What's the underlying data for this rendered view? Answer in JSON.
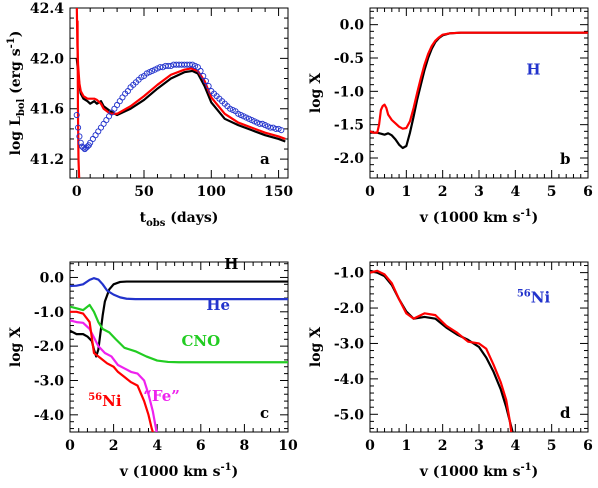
{
  "chart_data": [
    {
      "panel": "a",
      "type": "line",
      "xlabel": "t",
      "xlabel_sub": "obs",
      "xlabel_rest": " (days)",
      "ylabel": "log L",
      "ylabel_sub": "bol",
      "ylabel_rest": " (erg s",
      "ylabel_sup": "-1",
      "ylabel_end": ")",
      "xlim": [
        -5,
        157
      ],
      "ylim": [
        41.05,
        42.4
      ],
      "xticks": [
        0,
        50,
        100,
        150
      ],
      "xtick_labels": [
        "0",
        "50",
        "100",
        "150"
      ],
      "yticks": [
        41.2,
        41.6,
        42.0,
        42.4
      ],
      "ytick_labels": [
        "41.2",
        "41.6",
        "42.0",
        "42.4"
      ],
      "panel_label": "a",
      "series": [
        {
          "color": "#000000",
          "style": "line",
          "x": [
            0,
            1,
            2,
            3,
            5,
            8,
            10,
            13,
            15,
            18,
            20,
            25,
            30,
            40,
            50,
            60,
            70,
            80,
            86,
            90,
            95,
            100,
            110,
            120,
            130,
            140,
            150,
            155
          ],
          "y": [
            42.0,
            41.9,
            41.78,
            41.72,
            41.68,
            41.66,
            41.64,
            41.66,
            41.64,
            41.66,
            41.62,
            41.58,
            41.55,
            41.6,
            41.67,
            41.76,
            41.84,
            41.89,
            41.9,
            41.88,
            41.78,
            41.65,
            41.52,
            41.47,
            41.43,
            41.39,
            41.36,
            41.34
          ]
        },
        {
          "color": "#ff0000",
          "style": "line",
          "x": [
            0,
            0.5,
            1,
            2,
            3,
            5,
            8,
            10,
            13,
            15,
            18,
            20,
            25,
            30,
            40,
            50,
            60,
            70,
            80,
            85,
            90,
            95,
            100,
            110,
            120,
            130,
            140,
            150,
            155
          ],
          "y": [
            42.45,
            42.1,
            41.95,
            41.8,
            41.74,
            41.7,
            41.68,
            41.68,
            41.68,
            41.67,
            41.64,
            41.6,
            41.56,
            41.56,
            41.62,
            41.7,
            41.79,
            41.87,
            41.91,
            41.92,
            41.9,
            41.82,
            41.69,
            41.56,
            41.49,
            41.45,
            41.41,
            41.38,
            41.36
          ]
        },
        {
          "color": "#ff0000",
          "style": "line",
          "x": [
            0.6,
            0.9,
            1.3,
            1.8
          ],
          "y": [
            42.3,
            41.6,
            41.2,
            41.05
          ]
        },
        {
          "color": "#2233cc",
          "style": "markers",
          "x": [
            0,
            1,
            2,
            3,
            4,
            5,
            6,
            7,
            8,
            9,
            10,
            12,
            14,
            16,
            18,
            20,
            22,
            24,
            26,
            28,
            30,
            32,
            34,
            36,
            38,
            40,
            42,
            44,
            46,
            48,
            50,
            52,
            54,
            56,
            58,
            60,
            62,
            64,
            66,
            68,
            70,
            72,
            74,
            76,
            78,
            80,
            82,
            84,
            86,
            88,
            90,
            92,
            94,
            96,
            98,
            100,
            102,
            104,
            106,
            108,
            110,
            112,
            114,
            116,
            118,
            120,
            122,
            124,
            126,
            128,
            130,
            132,
            134,
            136,
            138,
            140,
            142,
            144,
            146,
            148,
            150,
            152
          ],
          "y": [
            41.55,
            41.45,
            41.38,
            41.33,
            41.3,
            41.29,
            41.28,
            41.29,
            41.3,
            41.31,
            41.33,
            41.36,
            41.39,
            41.42,
            41.45,
            41.48,
            41.51,
            41.54,
            41.57,
            41.6,
            41.63,
            41.66,
            41.69,
            41.72,
            41.74,
            41.77,
            41.79,
            41.81,
            41.83,
            41.85,
            41.86,
            41.88,
            41.89,
            41.9,
            41.91,
            41.92,
            41.93,
            41.93,
            41.94,
            41.94,
            41.94,
            41.95,
            41.95,
            41.95,
            41.95,
            41.95,
            41.95,
            41.95,
            41.95,
            41.94,
            41.93,
            41.9,
            41.86,
            41.82,
            41.78,
            41.74,
            41.72,
            41.7,
            41.68,
            41.66,
            41.64,
            41.62,
            41.6,
            41.59,
            41.58,
            41.56,
            41.55,
            41.54,
            41.53,
            41.52,
            41.51,
            41.5,
            41.49,
            41.48,
            41.48,
            41.47,
            41.46,
            41.45,
            41.45,
            41.44,
            41.44,
            41.43
          ]
        }
      ]
    },
    {
      "panel": "b",
      "type": "line",
      "xlabel": "v (1000 km s",
      "xlabel_sup": "-1",
      "xlabel_end": ")",
      "ylabel": "log X",
      "xlim": [
        0,
        6
      ],
      "ylim": [
        -2.3,
        0.25
      ],
      "xticks": [
        0,
        1,
        2,
        3,
        4,
        5,
        6
      ],
      "xtick_labels": [
        "0",
        "1",
        "2",
        "3",
        "4",
        "5",
        "6"
      ],
      "yticks": [
        -2.0,
        -1.5,
        -1.0,
        -0.5,
        0.0
      ],
      "ytick_labels": [
        "-2.0",
        "-1.5",
        "-1.0",
        "-0.5",
        "0.0"
      ],
      "panel_label": "b",
      "annotation": {
        "text": "H",
        "color": "#2233cc",
        "x": 4.5,
        "y": -0.75
      },
      "series": [
        {
          "color": "#000000",
          "style": "line",
          "x": [
            0,
            0.2,
            0.4,
            0.5,
            0.6,
            0.7,
            0.8,
            0.9,
            1.0,
            1.1,
            1.2,
            1.3,
            1.4,
            1.5,
            1.6,
            1.7,
            1.8,
            1.9,
            2.0,
            2.2,
            2.5,
            3,
            4,
            5,
            6
          ],
          "y": [
            -1.62,
            -1.62,
            -1.65,
            -1.63,
            -1.66,
            -1.72,
            -1.8,
            -1.85,
            -1.82,
            -1.62,
            -1.38,
            -1.12,
            -0.9,
            -0.68,
            -0.5,
            -0.36,
            -0.26,
            -0.2,
            -0.16,
            -0.13,
            -0.12,
            -0.12,
            -0.12,
            -0.12,
            -0.12
          ]
        },
        {
          "color": "#ff0000",
          "style": "line",
          "x": [
            0,
            0.1,
            0.2,
            0.25,
            0.3,
            0.35,
            0.4,
            0.45,
            0.5,
            0.6,
            0.7,
            0.8,
            0.9,
            1.0,
            1.1,
            1.2,
            1.3,
            1.4,
            1.5,
            1.6,
            1.7,
            1.8,
            1.9,
            2.0,
            2.2,
            2.5,
            3,
            4,
            5,
            6
          ],
          "y": [
            -1.6,
            -1.62,
            -1.62,
            -1.5,
            -1.28,
            -1.22,
            -1.2,
            -1.25,
            -1.35,
            -1.43,
            -1.48,
            -1.53,
            -1.56,
            -1.55,
            -1.45,
            -1.25,
            -1.02,
            -0.8,
            -0.6,
            -0.44,
            -0.32,
            -0.24,
            -0.19,
            -0.15,
            -0.13,
            -0.12,
            -0.12,
            -0.12,
            -0.12,
            -0.12
          ]
        }
      ]
    },
    {
      "panel": "c",
      "type": "line",
      "xlabel": "v (1000 km s",
      "xlabel_sup": "-1",
      "xlabel_end": ")",
      "ylabel": "log X",
      "xlim": [
        0,
        10
      ],
      "ylim": [
        -4.5,
        0.45
      ],
      "xticks": [
        0,
        2,
        4,
        6,
        8,
        10
      ],
      "xtick_labels": [
        "0",
        "2",
        "4",
        "6",
        "8",
        "10"
      ],
      "yticks": [
        -4.0,
        -3.0,
        -2.0,
        -1.0,
        0.0
      ],
      "ytick_labels": [
        "-4.0",
        "-3.0",
        "-2.0",
        "-1.0",
        "0.0"
      ],
      "panel_label": "c",
      "annotations": [
        {
          "text": "H",
          "color": "#000000",
          "x": 7.4,
          "y": 0.25
        },
        {
          "text": "He",
          "color": "#2233cc",
          "x": 6.8,
          "y": -0.95
        },
        {
          "text": "CNO",
          "color": "#22cc22",
          "x": 6.0,
          "y": -2.0
        },
        {
          "text": "“Fe”",
          "color": "#ee22ee",
          "x": 4.2,
          "y": -3.6
        },
        {
          "text": "Ni",
          "sup": "56",
          "color": "#ff0000",
          "x": 1.6,
          "y": -3.75
        }
      ],
      "series": [
        {
          "color": "#000000",
          "style": "line",
          "x": [
            0,
            0.3,
            0.6,
            0.8,
            1.0,
            1.1,
            1.2,
            1.3,
            1.4,
            1.5,
            1.6,
            1.8,
            2.0,
            2.3,
            2.6,
            3,
            4,
            6,
            8,
            10
          ],
          "y": [
            -1.55,
            -1.65,
            -1.65,
            -1.72,
            -1.85,
            -2.1,
            -2.3,
            -2.1,
            -1.6,
            -1.1,
            -0.7,
            -0.35,
            -0.2,
            -0.13,
            -0.12,
            -0.12,
            -0.12,
            -0.12,
            -0.12,
            -0.12
          ]
        },
        {
          "color": "#2233cc",
          "style": "line",
          "x": [
            0,
            0.3,
            0.6,
            0.9,
            1.1,
            1.3,
            1.5,
            1.7,
            2.0,
            2.3,
            2.6,
            3,
            4,
            6,
            8,
            10
          ],
          "y": [
            -0.25,
            -0.24,
            -0.2,
            -0.07,
            -0.02,
            -0.06,
            -0.2,
            -0.38,
            -0.5,
            -0.58,
            -0.62,
            -0.63,
            -0.63,
            -0.63,
            -0.63,
            -0.63
          ]
        },
        {
          "color": "#22cc22",
          "style": "line",
          "x": [
            0,
            0.3,
            0.6,
            0.9,
            1.1,
            1.3,
            1.5,
            1.8,
            2.1,
            2.5,
            3.0,
            3.5,
            4.0,
            4.5,
            5,
            6,
            8,
            10
          ],
          "y": [
            -0.85,
            -0.9,
            -0.95,
            -0.8,
            -1.0,
            -1.3,
            -1.5,
            -1.6,
            -1.8,
            -2.05,
            -2.15,
            -2.3,
            -2.42,
            -2.46,
            -2.47,
            -2.47,
            -2.47,
            -2.47
          ]
        },
        {
          "color": "#ee22ee",
          "style": "line",
          "x": [
            0,
            0.3,
            0.6,
            0.9,
            1.1,
            1.3,
            1.6,
            1.9,
            2.2,
            2.5,
            2.8,
            3.1,
            3.4,
            3.6,
            3.8,
            4.0
          ],
          "y": [
            -1.25,
            -1.3,
            -1.32,
            -1.5,
            -1.75,
            -2.0,
            -2.2,
            -2.3,
            -2.55,
            -2.65,
            -2.75,
            -2.8,
            -3.0,
            -3.4,
            -3.9,
            -4.6
          ]
        },
        {
          "color": "#ff0000",
          "style": "line",
          "x": [
            0,
            0.3,
            0.6,
            0.9,
            1.1,
            1.4,
            1.7,
            2.0,
            2.2,
            2.5,
            2.8,
            3.1,
            3.4,
            3.6,
            3.75,
            3.85
          ],
          "y": [
            -1.0,
            -1.0,
            -1.05,
            -1.3,
            -2.2,
            -2.35,
            -2.5,
            -2.6,
            -2.75,
            -2.9,
            -3.05,
            -3.15,
            -3.6,
            -4.0,
            -4.4,
            -4.6
          ]
        }
      ]
    },
    {
      "panel": "d",
      "type": "line",
      "xlabel": "v (1000 km s",
      "xlabel_sup": "-1",
      "xlabel_end": ")",
      "ylabel": "log X",
      "xlim": [
        0,
        6
      ],
      "ylim": [
        -5.5,
        -0.7
      ],
      "xticks": [
        0,
        1,
        2,
        3,
        4,
        5,
        6
      ],
      "xtick_labels": [
        "0",
        "1",
        "2",
        "3",
        "4",
        "5",
        "6"
      ],
      "yticks": [
        -5.0,
        -4.0,
        -3.0,
        -2.0,
        -1.0
      ],
      "ytick_labels": [
        "-5.0",
        "-4.0",
        "-3.0",
        "-2.0",
        "-1.0"
      ],
      "panel_label": "d",
      "annotation": {
        "text": "Ni",
        "sup": "56",
        "color": "#2233cc",
        "x": 4.5,
        "y": -1.85
      },
      "series": [
        {
          "color": "#000000",
          "style": "line",
          "x": [
            0,
            0.2,
            0.4,
            0.6,
            0.8,
            1.0,
            1.2,
            1.5,
            1.8,
            2.1,
            2.4,
            2.7,
            3.0,
            3.2,
            3.4,
            3.6,
            3.75,
            3.85,
            3.95
          ],
          "y": [
            -0.95,
            -1.0,
            -1.1,
            -1.35,
            -1.75,
            -2.1,
            -2.3,
            -2.25,
            -2.3,
            -2.55,
            -2.75,
            -2.9,
            -3.1,
            -3.4,
            -3.8,
            -4.3,
            -4.8,
            -5.2,
            -5.6
          ]
        },
        {
          "color": "#ff0000",
          "style": "line",
          "x": [
            0,
            0.2,
            0.4,
            0.6,
            0.8,
            1.0,
            1.2,
            1.5,
            1.8,
            2.1,
            2.4,
            2.7,
            3.0,
            3.2,
            3.4,
            3.6,
            3.75,
            3.85,
            3.9
          ],
          "y": [
            -1.0,
            -0.95,
            -1.05,
            -1.3,
            -1.75,
            -2.15,
            -2.3,
            -2.15,
            -2.2,
            -2.5,
            -2.7,
            -2.95,
            -3.0,
            -3.15,
            -3.6,
            -4.1,
            -4.6,
            -5.2,
            -5.6
          ]
        }
      ]
    }
  ]
}
